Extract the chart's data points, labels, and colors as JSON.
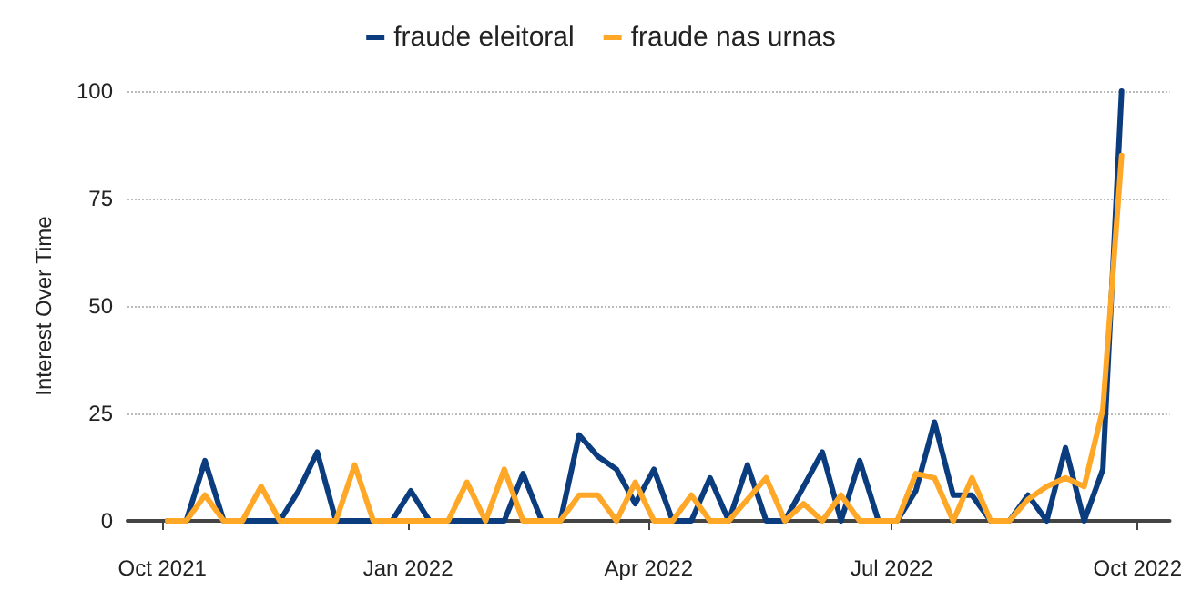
{
  "chart_data": {
    "type": "line",
    "ylabel": "Interest Over Time",
    "x": [
      "2021-10-03",
      "2021-10-10",
      "2021-10-17",
      "2021-10-24",
      "2021-10-31",
      "2021-11-07",
      "2021-11-14",
      "2021-11-21",
      "2021-11-28",
      "2021-12-05",
      "2021-12-12",
      "2021-12-19",
      "2021-12-26",
      "2022-01-02",
      "2022-01-09",
      "2022-01-16",
      "2022-01-23",
      "2022-01-30",
      "2022-02-06",
      "2022-02-13",
      "2022-02-20",
      "2022-02-27",
      "2022-03-06",
      "2022-03-13",
      "2022-03-20",
      "2022-03-27",
      "2022-04-03",
      "2022-04-10",
      "2022-04-17",
      "2022-04-24",
      "2022-05-01",
      "2022-05-08",
      "2022-05-15",
      "2022-05-22",
      "2022-05-29",
      "2022-06-05",
      "2022-06-12",
      "2022-06-19",
      "2022-06-26",
      "2022-07-03",
      "2022-07-10",
      "2022-07-17",
      "2022-07-24",
      "2022-07-31",
      "2022-08-07",
      "2022-08-14",
      "2022-08-21",
      "2022-08-28",
      "2022-09-04",
      "2022-09-11",
      "2022-09-18",
      "2022-09-25"
    ],
    "series": [
      {
        "name": "fraude eleitoral",
        "color": "#0b3d7e",
        "values": [
          0,
          0,
          14,
          0,
          0,
          0,
          0,
          7,
          16,
          0,
          0,
          0,
          0,
          7,
          0,
          0,
          0,
          0,
          0,
          11,
          0,
          0,
          20,
          15,
          12,
          4,
          12,
          0,
          0,
          10,
          0,
          13,
          0,
          0,
          8,
          16,
          0,
          14,
          0,
          0,
          7,
          23,
          6,
          6,
          0,
          0,
          6,
          0,
          17,
          0,
          12,
          100
        ]
      },
      {
        "name": "fraude nas urnas",
        "color": "#ffa726",
        "values": [
          0,
          0,
          6,
          0,
          0,
          8,
          0,
          0,
          0,
          0,
          13,
          0,
          0,
          0,
          0,
          0,
          9,
          0,
          12,
          0,
          0,
          0,
          6,
          6,
          0,
          9,
          0,
          0,
          6,
          0,
          0,
          5,
          10,
          0,
          4,
          0,
          6,
          0,
          0,
          0,
          11,
          10,
          0,
          10,
          0,
          0,
          5,
          8,
          10,
          8,
          26,
          85
        ]
      }
    ],
    "xlim": [
      "2021-09-18",
      "2022-10-13"
    ],
    "xticks": [
      {
        "value": "2021-10-01",
        "label": "Oct 2021"
      },
      {
        "value": "2022-01-01",
        "label": "Jan 2022"
      },
      {
        "value": "2022-04-01",
        "label": "Apr 2022"
      },
      {
        "value": "2022-07-01",
        "label": "Jul 2022"
      },
      {
        "value": "2022-10-01",
        "label": "Oct 2022"
      }
    ],
    "ylim": [
      0,
      100
    ],
    "yticks": [
      0,
      25,
      50,
      75,
      100
    ],
    "grid": "y",
    "legend": "top",
    "marker": "none",
    "line_style": "solid"
  }
}
